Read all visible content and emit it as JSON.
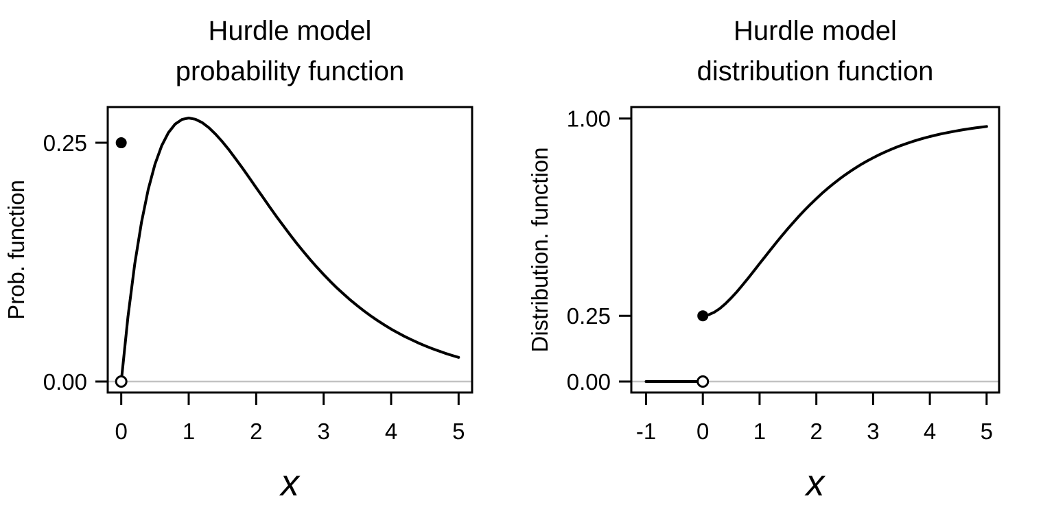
{
  "figure": {
    "background": "#ffffff",
    "foreground": "#000000",
    "reference_line_color": "#c3c3c3",
    "open_point_fill": "#ffffff"
  },
  "chart_data": [
    {
      "type": "line",
      "panel": "left",
      "title_lines": [
        "Hurdle model",
        "probability function"
      ],
      "xlabel": "x",
      "ylabel": "Prob. function",
      "xlim": [
        -0.2,
        5.2
      ],
      "ylim": [
        -0.0115,
        0.2874
      ],
      "grid": false,
      "legend": "none",
      "reference_line_y": 0,
      "x_ticks": {
        "values": [
          0,
          1,
          2,
          3,
          4,
          5
        ],
        "labels": [
          "0",
          "1",
          "2",
          "3",
          "4",
          "5"
        ]
      },
      "y_ticks": {
        "values": [
          0,
          0.25
        ],
        "labels": [
          "0.00",
          "0.25"
        ]
      },
      "series": [
        {
          "name": "pdf-curve",
          "points": [
            [
              0,
              0
            ],
            [
              0.1,
              0.0679
            ],
            [
              0.2,
              0.1228
            ],
            [
              0.3,
              0.1667
            ],
            [
              0.4,
              0.2011
            ],
            [
              0.5,
              0.2274
            ],
            [
              0.6,
              0.247
            ],
            [
              0.7,
              0.2607
            ],
            [
              0.8,
              0.2696
            ],
            [
              0.9,
              0.2744
            ],
            [
              1,
              0.2759
            ],
            [
              1.1,
              0.2746
            ],
            [
              1.2,
              0.2711
            ],
            [
              1.3,
              0.2657
            ],
            [
              1.4,
              0.2589
            ],
            [
              1.5,
              0.251
            ],
            [
              1.6,
              0.2423
            ],
            [
              1.7,
              0.2329
            ],
            [
              1.8,
              0.2232
            ],
            [
              1.9,
              0.2131
            ],
            [
              2,
              0.203
            ],
            [
              2.1,
              0.1929
            ],
            [
              2.2,
              0.1828
            ],
            [
              2.3,
              0.1729
            ],
            [
              2.4,
              0.1633
            ],
            [
              2.5,
              0.1539
            ],
            [
              2.6,
              0.1448
            ],
            [
              2.7,
              0.1361
            ],
            [
              2.8,
              0.1277
            ],
            [
              2.9,
              0.1197
            ],
            [
              3,
              0.112
            ],
            [
              3.1,
              0.1047
            ],
            [
              3.2,
              0.0978
            ],
            [
              3.3,
              0.0913
            ],
            [
              3.4,
              0.0851
            ],
            [
              3.5,
              0.0793
            ],
            [
              3.6,
              0.0738
            ],
            [
              3.7,
              0.0686
            ],
            [
              3.8,
              0.0638
            ],
            [
              3.9,
              0.0592
            ],
            [
              4,
              0.0549
            ],
            [
              4.1,
              0.051
            ],
            [
              4.2,
              0.0472
            ],
            [
              4.3,
              0.0438
            ],
            [
              4.4,
              0.0405
            ],
            [
              4.5,
              0.0375
            ],
            [
              4.6,
              0.0347
            ],
            [
              4.7,
              0.0321
            ],
            [
              4.8,
              0.0296
            ],
            [
              4.9,
              0.0274
            ],
            [
              5,
              0.0253
            ]
          ]
        }
      ],
      "markers": [
        {
          "x": 0,
          "y": 0.25,
          "style": "filled",
          "meaning": "point mass P(X=0)=0.25"
        },
        {
          "x": 0,
          "y": 0,
          "style": "open",
          "meaning": "continuous part excludes 0"
        }
      ]
    },
    {
      "type": "line",
      "panel": "right",
      "title_lines": [
        "Hurdle model",
        "distribution function"
      ],
      "xlabel": "x",
      "ylabel": "Distribution. function",
      "xlim": [
        -1.26,
        5.22
      ],
      "ylim": [
        -0.0417,
        1.0436
      ],
      "grid": false,
      "legend": "none",
      "reference_line_y": 0,
      "x_ticks": {
        "values": [
          -1,
          0,
          1,
          2,
          3,
          4,
          5
        ],
        "labels": [
          "-1",
          "0",
          "1",
          "2",
          "3",
          "4",
          "5"
        ]
      },
      "y_ticks": {
        "values": [
          0,
          0.25,
          1
        ],
        "labels": [
          "0.00",
          "0.25",
          "1.00"
        ]
      },
      "series": [
        {
          "name": "cdf-negative-segment",
          "points": [
            [
              -1,
              0
            ],
            [
              0,
              0
            ]
          ]
        },
        {
          "name": "cdf-curve",
          "points": [
            [
              0,
              0.25
            ],
            [
              0.1,
              0.2535
            ],
            [
              0.2,
              0.2632
            ],
            [
              0.3,
              0.2777
            ],
            [
              0.4,
              0.2962
            ],
            [
              0.5,
              0.3177
            ],
            [
              0.6,
              0.3414
            ],
            [
              0.7,
              0.3669
            ],
            [
              0.8,
              0.3934
            ],
            [
              0.9,
              0.4206
            ],
            [
              1,
              0.4482
            ],
            [
              1.1,
              0.4757
            ],
            [
              1.2,
              0.503
            ],
            [
              1.3,
              0.5299
            ],
            [
              1.4,
              0.5561
            ],
            [
              1.5,
              0.5816
            ],
            [
              1.6,
              0.6062
            ],
            [
              1.7,
              0.6301
            ],
            [
              1.8,
              0.6529
            ],
            [
              1.9,
              0.6747
            ],
            [
              2,
              0.6955
            ],
            [
              2.1,
              0.7153
            ],
            [
              2.2,
              0.7341
            ],
            [
              2.3,
              0.7519
            ],
            [
              2.4,
              0.7687
            ],
            [
              2.5,
              0.7845
            ],
            [
              2.6,
              0.7995
            ],
            [
              2.7,
              0.8135
            ],
            [
              2.8,
              0.8267
            ],
            [
              2.9,
              0.8391
            ],
            [
              3,
              0.8506
            ],
            [
              3.1,
              0.8615
            ],
            [
              3.2,
              0.8716
            ],
            [
              3.3,
              0.8811
            ],
            [
              3.4,
              0.8899
            ],
            [
              3.5,
              0.8981
            ],
            [
              3.6,
              0.9057
            ],
            [
              3.7,
              0.9128
            ],
            [
              3.8,
              0.9195
            ],
            [
              3.9,
              0.9256
            ],
            [
              4,
              0.9313
            ],
            [
              4.1,
              0.9366
            ],
            [
              4.2,
              0.9415
            ],
            [
              4.3,
              0.9461
            ],
            [
              4.4,
              0.9502
            ],
            [
              4.5,
              0.9542
            ],
            [
              4.6,
              0.9578
            ],
            [
              4.7,
              0.9611
            ],
            [
              4.8,
              0.9642
            ],
            [
              4.9,
              0.967
            ],
            [
              5,
              0.9697
            ]
          ]
        }
      ],
      "markers": [
        {
          "x": 0,
          "y": 0.25,
          "style": "filled",
          "meaning": "F(0)=0.25 (right-continuous)"
        },
        {
          "x": 0,
          "y": 0,
          "style": "open",
          "meaning": "limit from the left F(0-)=0"
        }
      ]
    }
  ]
}
